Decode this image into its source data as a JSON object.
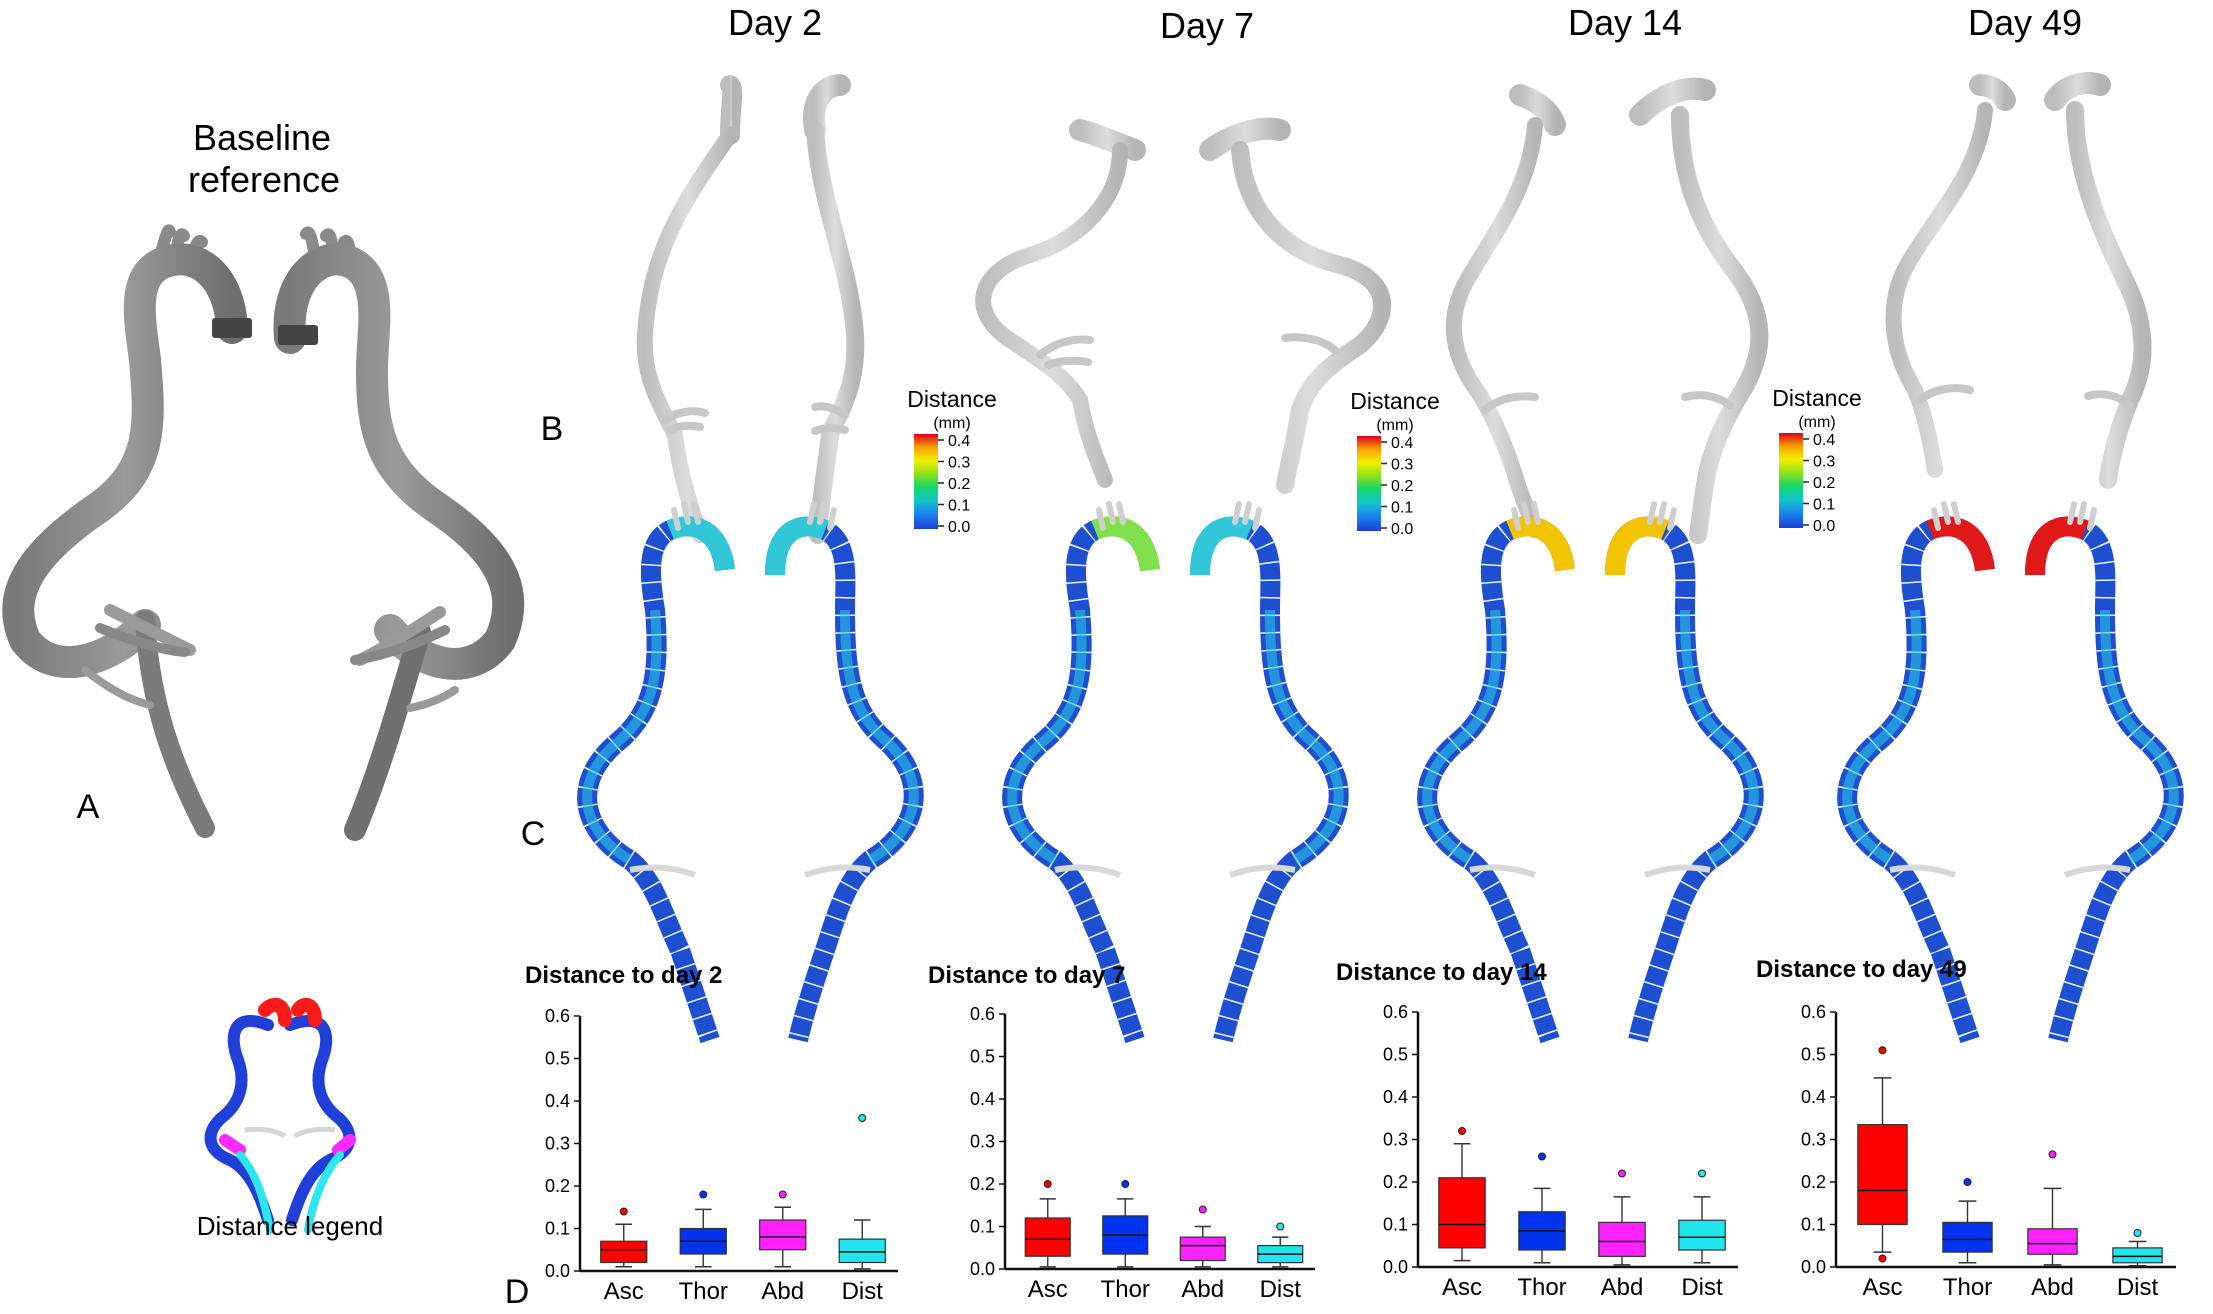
{
  "figure": {
    "baseline_title_line1": "Baseline",
    "baseline_title_line2": "reference",
    "day_headers": [
      "Day 2",
      "Day 7",
      "Day 14",
      "Day 49"
    ],
    "panel_labels": {
      "a": "A",
      "b": "B",
      "c": "C",
      "d": "D"
    },
    "colorbar": {
      "title": "Distance",
      "unit": "(mm)",
      "ticks": [
        "0.4",
        "0.3",
        "0.2",
        "0.1",
        "0.0"
      ],
      "colors": [
        "#e0001b",
        "#f7a000",
        "#f2ef00",
        "#8fe21a",
        "#14d66a",
        "#12c6c8",
        "#1a86ee",
        "#1c3fd6"
      ]
    },
    "legend_caption": "Distance legend",
    "region_colors": {
      "Asc": "#ff0000",
      "Thor": "#0033ee",
      "Abd": "#ff22ff",
      "Dist": "#22e6ee"
    },
    "vessel_colors": {
      "gray_dark": "#8e8e8e",
      "gray_light": "#cfcfcf",
      "mesh_blue": "#1d4fd0",
      "mesh_cyan": "#22b4e8"
    }
  },
  "chart_data": [
    {
      "type": "box",
      "title": "Distance to day 2",
      "categories": [
        "Asc",
        "Thor",
        "Abd",
        "Dist"
      ],
      "ylim": [
        0,
        0.6
      ],
      "yticks": [
        "0.6",
        "0.5",
        "0.4",
        "0.3",
        "0.2",
        "0.1",
        "0.0"
      ],
      "boxes": [
        {
          "q1": 0.02,
          "median": 0.05,
          "q3": 0.07,
          "whisker_low": 0.01,
          "whisker_high": 0.11,
          "outliers": [
            0.14
          ]
        },
        {
          "q1": 0.04,
          "median": 0.07,
          "q3": 0.1,
          "whisker_low": 0.01,
          "whisker_high": 0.145,
          "outliers": [
            0.18
          ]
        },
        {
          "q1": 0.05,
          "median": 0.08,
          "q3": 0.12,
          "whisker_low": 0.01,
          "whisker_high": 0.15,
          "outliers": [
            0.18
          ]
        },
        {
          "q1": 0.02,
          "median": 0.045,
          "q3": 0.075,
          "whisker_low": 0.005,
          "whisker_high": 0.12,
          "outliers": [
            0.36
          ]
        }
      ]
    },
    {
      "type": "box",
      "title": "Distance to day 7",
      "categories": [
        "Asc",
        "Thor",
        "Abd",
        "Dist"
      ],
      "ylim": [
        0,
        0.6
      ],
      "yticks": [
        "0.6",
        "0.5",
        "0.4",
        "0.3",
        "0.2",
        "0.1",
        "0.0"
      ],
      "boxes": [
        {
          "q1": 0.03,
          "median": 0.07,
          "q3": 0.12,
          "whisker_low": 0.005,
          "whisker_high": 0.165,
          "outliers": [
            0.2
          ]
        },
        {
          "q1": 0.035,
          "median": 0.08,
          "q3": 0.125,
          "whisker_low": 0.005,
          "whisker_high": 0.165,
          "outliers": [
            0.2
          ]
        },
        {
          "q1": 0.02,
          "median": 0.055,
          "q3": 0.075,
          "whisker_low": 0.005,
          "whisker_high": 0.1,
          "outliers": [
            0.14
          ]
        },
        {
          "q1": 0.015,
          "median": 0.035,
          "q3": 0.055,
          "whisker_low": 0.005,
          "whisker_high": 0.075,
          "outliers": [
            0.1
          ]
        }
      ]
    },
    {
      "type": "box",
      "title": "Distance to day 14",
      "categories": [
        "Asc",
        "Thor",
        "Abd",
        "Dist"
      ],
      "ylim": [
        0,
        0.6
      ],
      "yticks": [
        "0.6",
        "0.5",
        "0.4",
        "0.3",
        "0.2",
        "0.1",
        "0.0"
      ],
      "boxes": [
        {
          "q1": 0.045,
          "median": 0.1,
          "q3": 0.21,
          "whisker_low": 0.015,
          "whisker_high": 0.29,
          "outliers": [
            0.32
          ]
        },
        {
          "q1": 0.04,
          "median": 0.085,
          "q3": 0.13,
          "whisker_low": 0.01,
          "whisker_high": 0.185,
          "outliers": [
            0.26
          ]
        },
        {
          "q1": 0.025,
          "median": 0.06,
          "q3": 0.105,
          "whisker_low": 0.005,
          "whisker_high": 0.165,
          "outliers": [
            0.22
          ]
        },
        {
          "q1": 0.04,
          "median": 0.07,
          "q3": 0.11,
          "whisker_low": 0.01,
          "whisker_high": 0.165,
          "outliers": [
            0.22
          ]
        }
      ]
    },
    {
      "type": "box",
      "title": "Distance to day 49",
      "categories": [
        "Asc",
        "Thor",
        "Abd",
        "Dist"
      ],
      "ylim": [
        0,
        0.6
      ],
      "yticks": [
        "0.6",
        "0.5",
        "0.4",
        "0.3",
        "0.2",
        "0.1",
        "0.0"
      ],
      "boxes": [
        {
          "q1": 0.1,
          "median": 0.18,
          "q3": 0.335,
          "whisker_low": 0.035,
          "whisker_high": 0.445,
          "outliers": [
            0.51,
            0.02
          ]
        },
        {
          "q1": 0.035,
          "median": 0.065,
          "q3": 0.105,
          "whisker_low": 0.01,
          "whisker_high": 0.155,
          "outliers": [
            0.2
          ]
        },
        {
          "q1": 0.03,
          "median": 0.055,
          "q3": 0.09,
          "whisker_low": 0.005,
          "whisker_high": 0.185,
          "outliers": [
            0.265
          ]
        },
        {
          "q1": 0.01,
          "median": 0.025,
          "q3": 0.045,
          "whisker_low": 0.003,
          "whisker_high": 0.06,
          "outliers": [
            0.08
          ]
        }
      ]
    }
  ]
}
